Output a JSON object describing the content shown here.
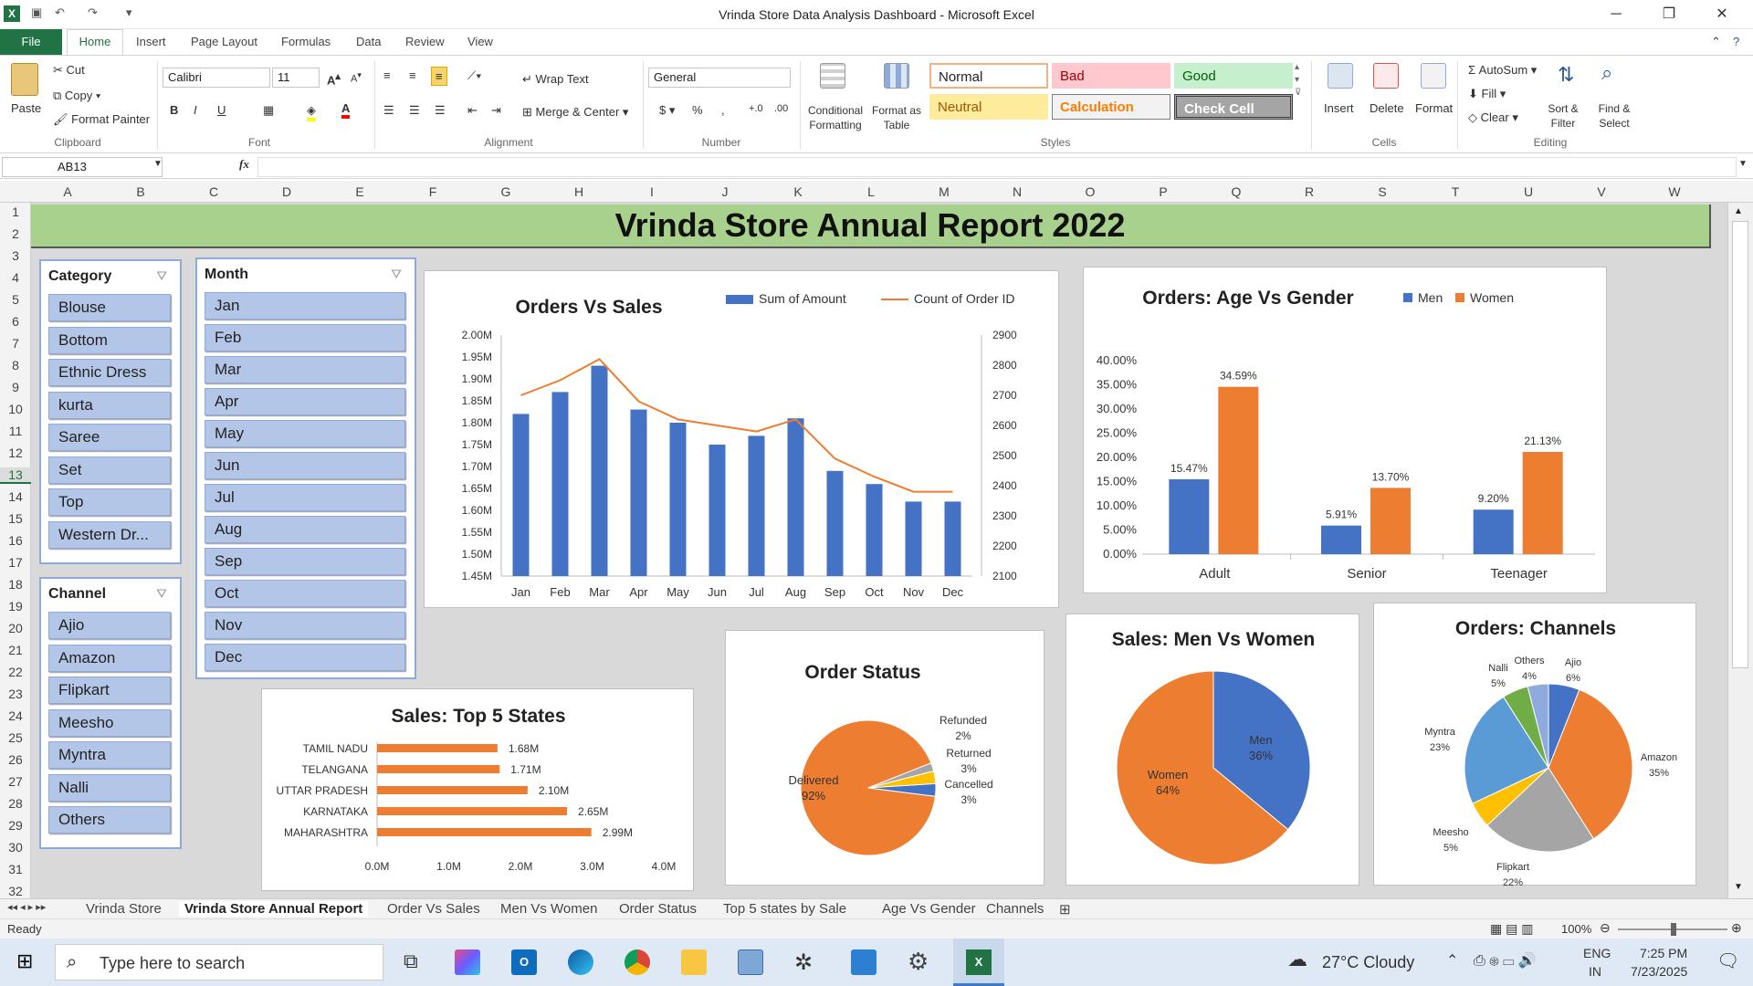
{
  "window": {
    "title": "Vrinda Store Data Analysis Dashboard  -  Microsoft Excel"
  },
  "tabs": [
    "File",
    "Home",
    "Insert",
    "Page Layout",
    "Formulas",
    "Data",
    "Review",
    "View"
  ],
  "ribbon": {
    "clipboard": {
      "paste": "Paste",
      "cut": "Cut",
      "copy": "Copy",
      "format_painter": "Format Painter",
      "group": "Clipboard"
    },
    "font": {
      "name": "Calibri",
      "size": "11",
      "group": "Font"
    },
    "alignment": {
      "wrap": "Wrap Text",
      "merge": "Merge & Center",
      "group": "Alignment"
    },
    "number": {
      "format": "General",
      "group": "Number"
    },
    "styles": {
      "conditional": "Conditional Formatting",
      "format_table": "Format as Table",
      "normal": "Normal",
      "bad": "Bad",
      "good": "Good",
      "neutral": "Neutral",
      "calculation": "Calculation",
      "check_cell": "Check Cell",
      "group": "Styles"
    },
    "cells": {
      "insert": "Insert",
      "delete": "Delete",
      "format": "Format",
      "group": "Cells"
    },
    "editing": {
      "autosum": "AutoSum",
      "fill": "Fill",
      "clear": "Clear",
      "sort": "Sort & Filter",
      "find": "Find & Select",
      "group": "Editing"
    }
  },
  "formula_bar": {
    "name_box": "AB13",
    "fx": "fx",
    "value": ""
  },
  "columns": [
    "A",
    "B",
    "C",
    "D",
    "E",
    "F",
    "G",
    "H",
    "I",
    "J",
    "K",
    "L",
    "M",
    "N",
    "O",
    "P",
    "Q",
    "R",
    "S",
    "T",
    "U",
    "V",
    "W"
  ],
  "rows": [
    "1",
    "2",
    "3",
    "4",
    "5",
    "6",
    "7",
    "8",
    "9",
    "10",
    "11",
    "12",
    "13",
    "14",
    "15",
    "16",
    "17",
    "18",
    "19",
    "20",
    "21",
    "22",
    "23",
    "24",
    "25",
    "26",
    "27",
    "28",
    "29",
    "30",
    "31",
    "32"
  ],
  "dashboard": {
    "title": "Vrinda Store Annual Report 2022",
    "category_slicer": {
      "header": "Category",
      "items": [
        "Blouse",
        "Bottom",
        "Ethnic Dress",
        "kurta",
        "Saree",
        "Set",
        "Top",
        "Western Dr..."
      ]
    },
    "month_slicer": {
      "header": "Month",
      "items": [
        "Jan",
        "Feb",
        "Mar",
        "Apr",
        "May",
        "Jun",
        "Jul",
        "Aug",
        "Sep",
        "Oct",
        "Nov",
        "Dec"
      ]
    },
    "channel_slicer": {
      "header": "Channel",
      "items": [
        "Ajio",
        "Amazon",
        "Flipkart",
        "Meesho",
        "Myntra",
        "Nalli",
        "Others"
      ]
    }
  },
  "chart_data": [
    {
      "type": "bar",
      "title": "Orders Vs Sales",
      "categories": [
        "Jan",
        "Feb",
        "Mar",
        "Apr",
        "May",
        "Jun",
        "Jul",
        "Aug",
        "Sep",
        "Oct",
        "Nov",
        "Dec"
      ],
      "series": [
        {
          "name": "Sum of Amount",
          "axis": "left",
          "values": [
            1.82,
            1.87,
            1.93,
            1.83,
            1.8,
            1.75,
            1.77,
            1.81,
            1.69,
            1.66,
            1.62,
            1.62
          ]
        },
        {
          "name": "Count of Order ID",
          "type": "line",
          "axis": "right",
          "values": [
            2700,
            2750,
            2820,
            2680,
            2620,
            2600,
            2580,
            2620,
            2490,
            2430,
            2380,
            2380
          ]
        }
      ],
      "left_ticks": [
        "2.00M",
        "1.95M",
        "1.90M",
        "1.85M",
        "1.80M",
        "1.75M",
        "1.70M",
        "1.65M",
        "1.60M",
        "1.55M",
        "1.50M",
        "1.45M"
      ],
      "right_ticks": [
        "2900",
        "2800",
        "2700",
        "2600",
        "2500",
        "2400",
        "2300",
        "2200",
        "2100"
      ],
      "ylim": [
        1.45,
        2.0
      ],
      "y2lim": [
        2100,
        2900
      ],
      "colors": [
        "#4472c4",
        "#ed7d31"
      ],
      "legend": "top-right"
    },
    {
      "type": "bar",
      "title": "Orders: Age Vs Gender",
      "categories": [
        "Adult",
        "Senior",
        "Teenager"
      ],
      "series": [
        {
          "name": "Men",
          "values": [
            15.47,
            5.91,
            9.2
          ],
          "labels": [
            "15.47%",
            "5.91%",
            "9.20%"
          ]
        },
        {
          "name": "Women",
          "values": [
            34.59,
            13.7,
            21.13
          ],
          "labels": [
            "34.59%",
            "13.70%",
            "21.13%"
          ]
        }
      ],
      "ticks": [
        "40.00%",
        "35.00%",
        "30.00%",
        "25.00%",
        "20.00%",
        "15.00%",
        "10.00%",
        "5.00%",
        "0.00%"
      ],
      "ylim": [
        0,
        40
      ],
      "colors": [
        "#4472c4",
        "#ed7d31"
      ],
      "legend": "top-right"
    },
    {
      "type": "bar",
      "orientation": "horizontal",
      "title": "Sales: Top 5 States",
      "categories": [
        "TAMIL NADU",
        "TELANGANA",
        "UTTAR PRADESH",
        "KARNATAKA",
        "MAHARASHTRA"
      ],
      "values": [
        1.68,
        1.71,
        2.1,
        2.65,
        2.99
      ],
      "labels": [
        "1.68M",
        "1.71M",
        "2.10M",
        "2.65M",
        "2.99M"
      ],
      "ticks": [
        "0.0M",
        "1.0M",
        "2.0M",
        "3.0M",
        "4.0M"
      ],
      "xlim": [
        0,
        4
      ],
      "color": "#ed7d31"
    },
    {
      "type": "pie",
      "title": "Order Status",
      "categories": [
        "Delivered",
        "Refunded",
        "Returned",
        "Cancelled"
      ],
      "values": [
        92,
        2,
        3,
        3
      ],
      "labels": [
        "92%",
        "2%",
        "3%",
        "3%"
      ],
      "colors": [
        "#ed7d31",
        "#a5a5a5",
        "#ffc000",
        "#4472c4"
      ]
    },
    {
      "type": "pie",
      "title": "Sales: Men Vs Women",
      "categories": [
        "Men",
        "Women"
      ],
      "values": [
        36,
        64
      ],
      "labels": [
        "36%",
        "64%"
      ],
      "colors": [
        "#4472c4",
        "#ed7d31"
      ]
    },
    {
      "type": "pie",
      "title": "Orders: Channels",
      "categories": [
        "Ajio",
        "Amazon",
        "Flipkart",
        "Meesho",
        "Myntra",
        "Nalli",
        "Others"
      ],
      "values": [
        6,
        35,
        22,
        5,
        23,
        5,
        4
      ],
      "labels": [
        "6%",
        "35%",
        "22%",
        "5%",
        "23%",
        "5%",
        "4%"
      ],
      "colors": [
        "#4472c4",
        "#ed7d31",
        "#a5a5a5",
        "#ffc000",
        "#5b9bd5",
        "#70ad47",
        "#8faadc"
      ]
    }
  ],
  "sheet_tabs": [
    "Vrinda Store",
    "Vrinda Store Annual Report",
    "Order Vs Sales",
    "Men Vs Women",
    "Order Status",
    "Top 5 states by Sale",
    "Age Vs Gender",
    "Channels"
  ],
  "status": {
    "ready": "Ready",
    "zoom": "100%"
  },
  "taskbar": {
    "search": "Type here to search",
    "weather": "27°C  Cloudy",
    "lang1": "ENG",
    "lang2": "IN",
    "time": "7:25 PM",
    "date": "7/23/2025"
  }
}
